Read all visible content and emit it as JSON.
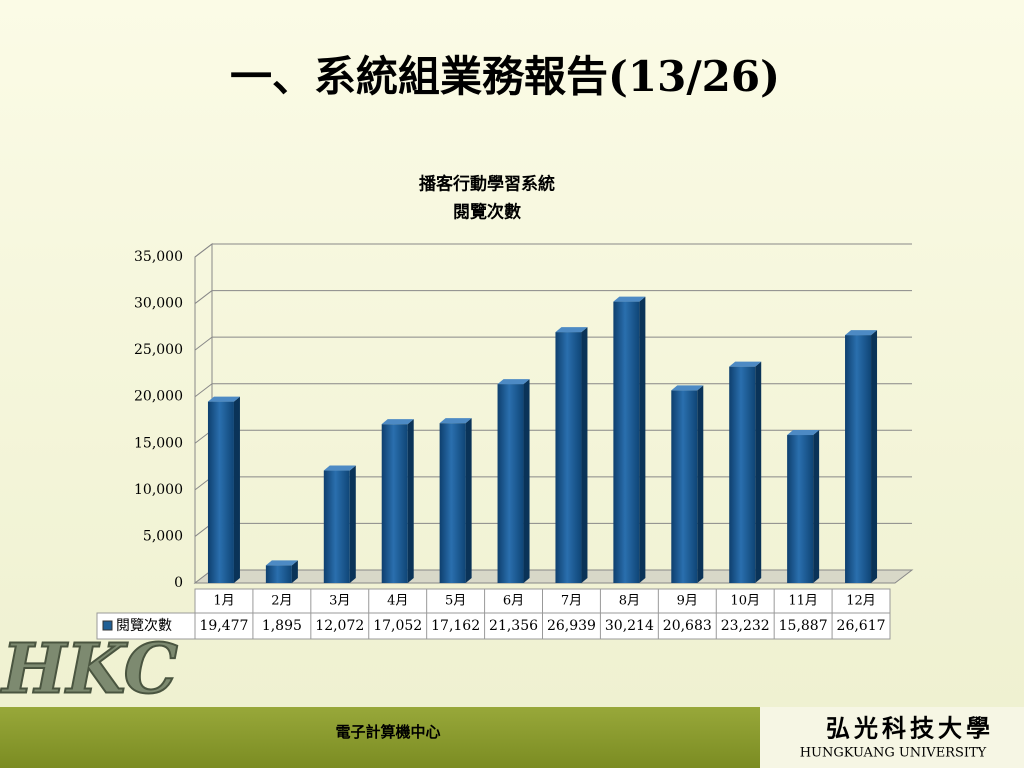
{
  "slide": {
    "title": "一、系統組業務報告(13/26)",
    "footer_left": "電子計算機中心",
    "logo_cn": "弘光科技大學",
    "logo_en": "HUNGKUANG UNIVERSITY",
    "logo_mark": "HKC"
  },
  "chart_data": {
    "type": "bar",
    "title": "播客行動學習系統",
    "subtitle": "閱覽次數",
    "categories": [
      "1月",
      "2月",
      "3月",
      "4月",
      "5月",
      "6月",
      "7月",
      "8月",
      "9月",
      "10月",
      "11月",
      "12月"
    ],
    "series": [
      {
        "name": "閱覽次數",
        "color": "#1f5f95",
        "values": [
          19477,
          1895,
          12072,
          17052,
          17162,
          21356,
          26939,
          30214,
          20683,
          23232,
          15887,
          26617
        ],
        "value_labels": [
          "19,477",
          "1,895",
          "12,072",
          "17,052",
          "17,162",
          "21,356",
          "26,939",
          "30,214",
          "20,683",
          "23,232",
          "15,887",
          "26,617"
        ]
      }
    ],
    "ylim": [
      0,
      35000
    ],
    "yticks": [
      0,
      {
        "value": 5000,
        "label": "5,000"
      },
      {
        "value": 10000,
        "label": "10,000"
      },
      {
        "value": 15000,
        "label": "15,000"
      },
      {
        "value": 20000,
        "label": "20,000"
      },
      {
        "value": 25000,
        "label": "25,000"
      },
      {
        "value": 30000,
        "label": "30,000"
      },
      {
        "value": 35000,
        "label": "35,000"
      }
    ],
    "grid": true,
    "data_table": true
  }
}
